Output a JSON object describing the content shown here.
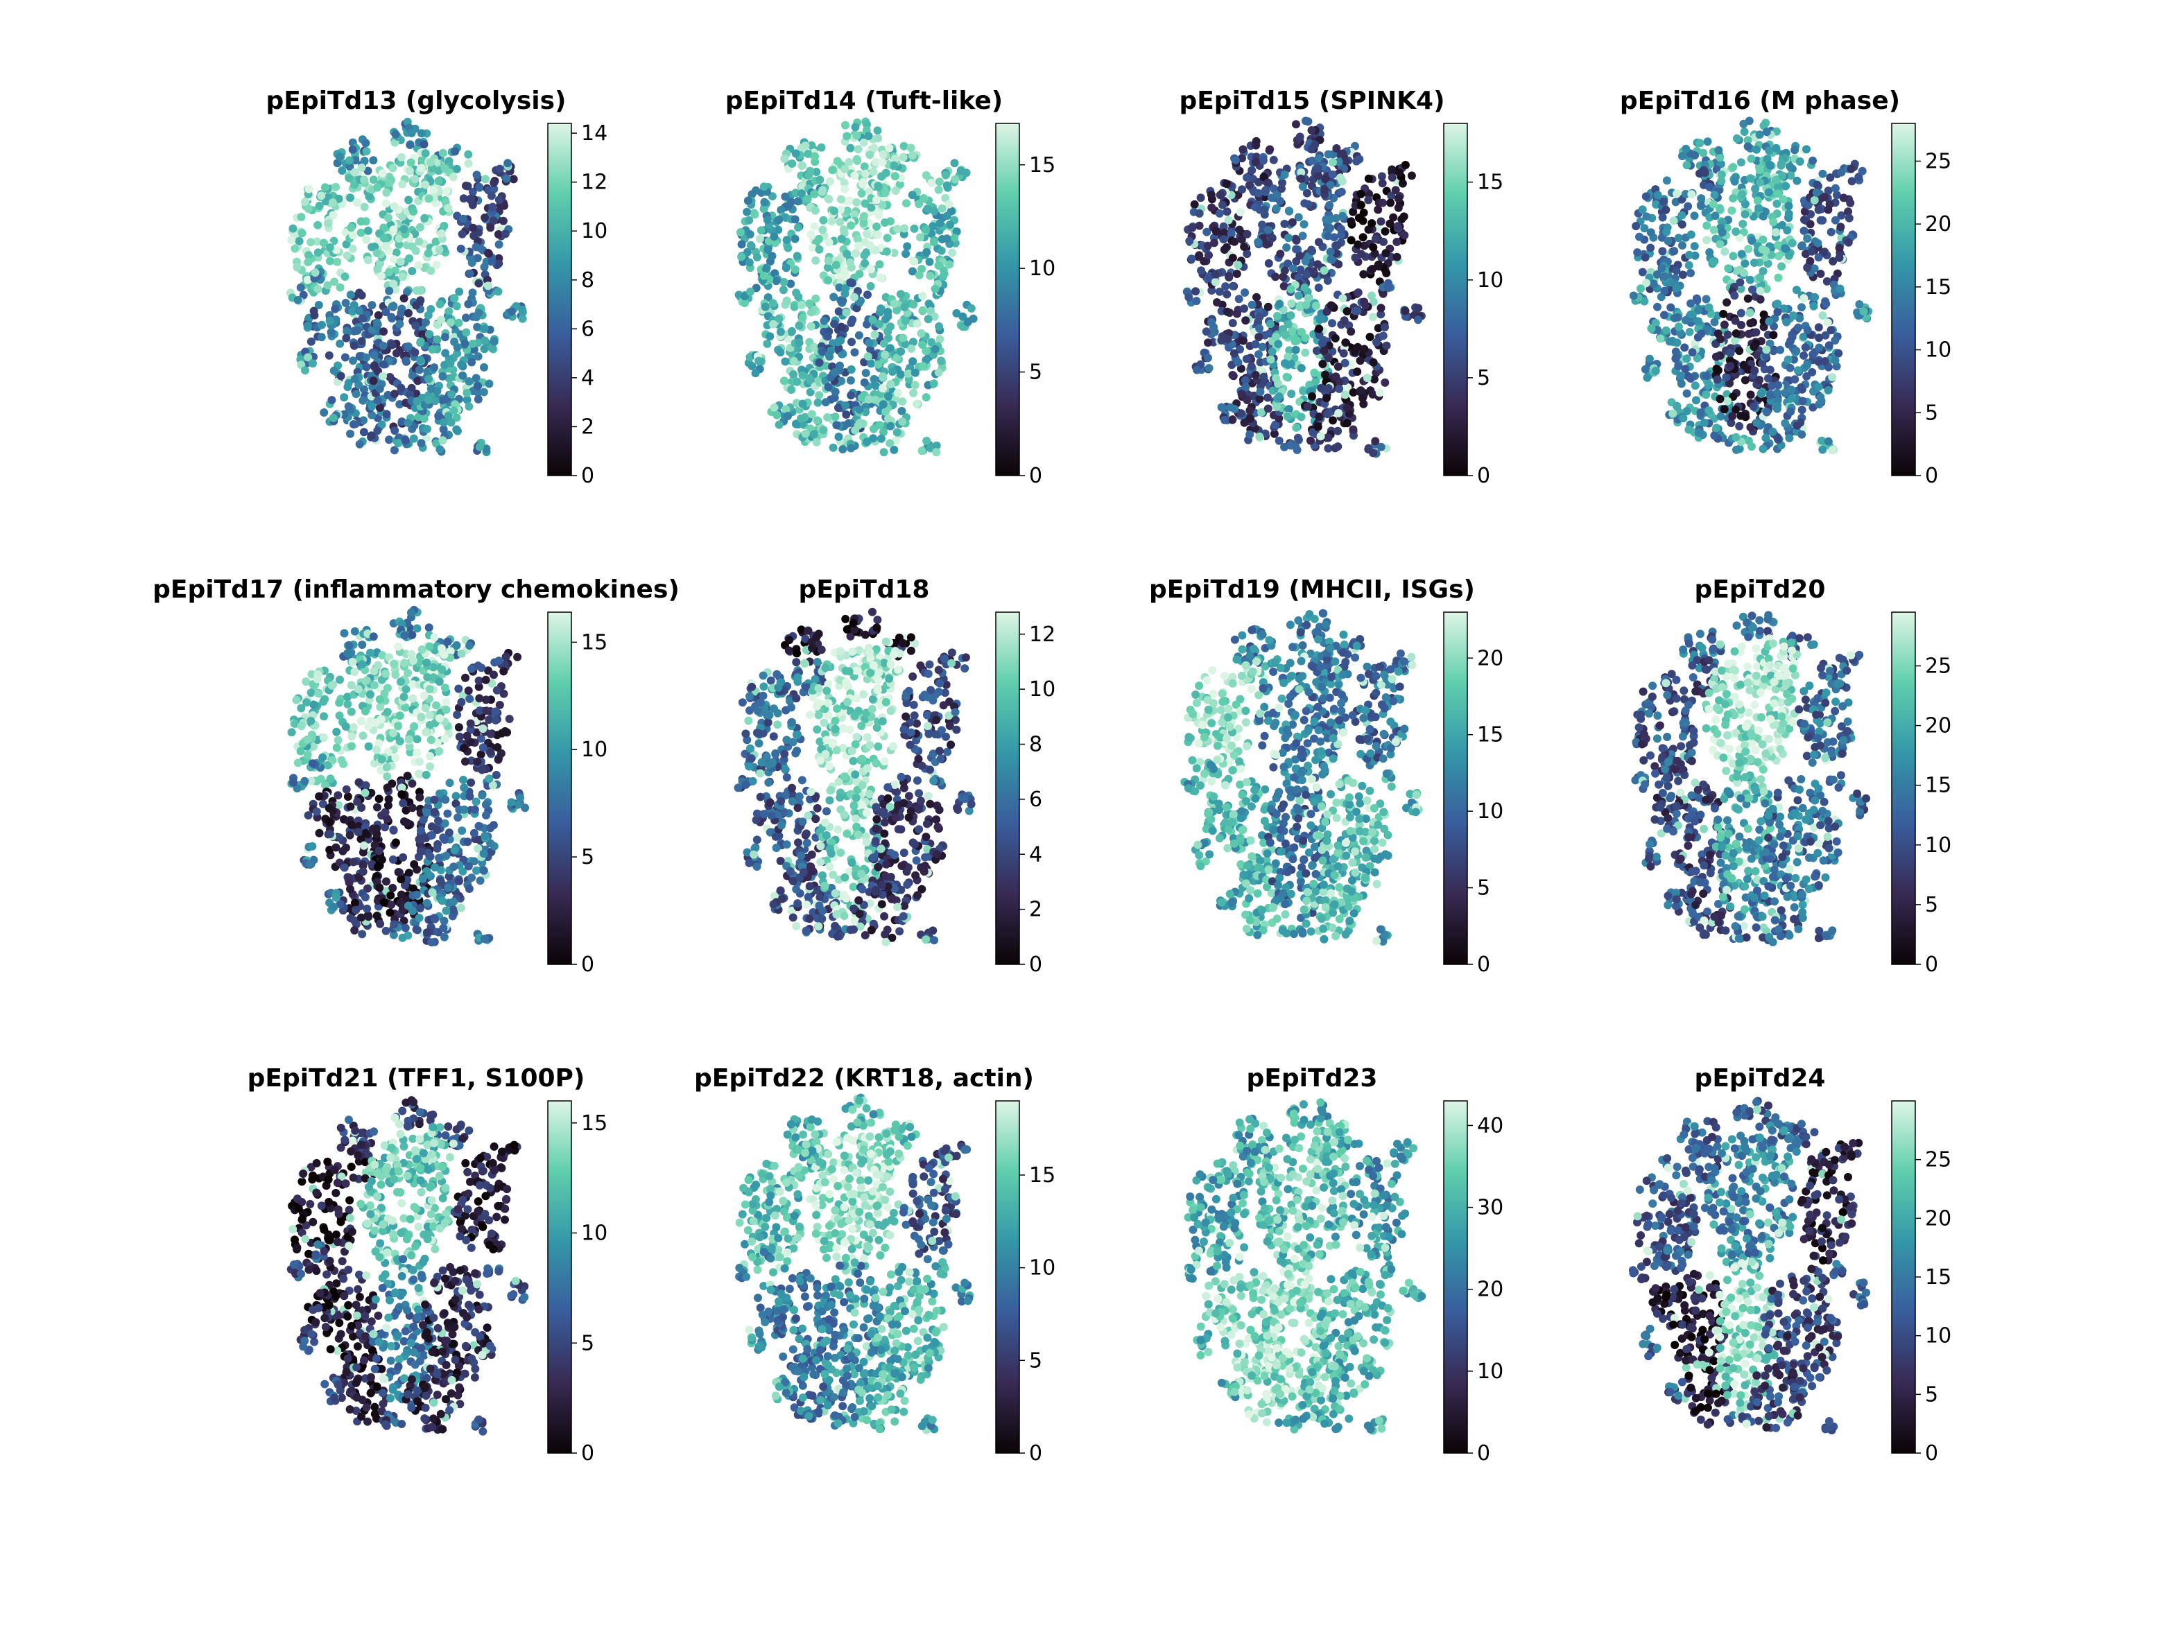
{
  "chart_data": {
    "type": "scatter",
    "colormap": "mako",
    "colormap_stops": [
      "#0b0405",
      "#382a54",
      "#395d9c",
      "#3497a9",
      "#60ceac",
      "#def5e5"
    ],
    "background": "#ffffff",
    "panels": [
      {
        "title": "pEpiTd13 (glycolysis)",
        "vmin": 0,
        "vmax": 14.4,
        "ticks": [
          0,
          2,
          4,
          6,
          8,
          10,
          12,
          14
        ],
        "regions": {
          "left_top": 0.85,
          "center_top": 0.85,
          "right_top": 0.35,
          "left_bottom": 0.45,
          "center_bottom": 0.35,
          "right_bottom": 0.6,
          "islands": 0.55,
          "top_cap": 0.55
        }
      },
      {
        "title": "pEpiTd14 (Tuft-like)",
        "vmin": 0,
        "vmax": 17,
        "ticks": [
          0,
          5,
          10,
          15
        ],
        "regions": {
          "left_top": 0.65,
          "center_top": 0.88,
          "right_top": 0.7,
          "left_bottom": 0.75,
          "center_bottom": 0.45,
          "right_bottom": 0.72,
          "islands": 0.7,
          "top_cap": 0.8
        }
      },
      {
        "title": "pEpiTd15 (SPINK4)",
        "vmin": 0,
        "vmax": 18,
        "ticks": [
          0,
          5,
          10,
          15
        ],
        "regions": {
          "left_top": 0.25,
          "center_top": 0.38,
          "right_top": 0.12,
          "left_bottom": 0.3,
          "center_bottom": 0.72,
          "right_bottom": 0.2,
          "islands": 0.35,
          "top_cap": 0.3
        }
      },
      {
        "title": "pEpiTd16 (M phase)",
        "vmin": 0,
        "vmax": 28,
        "ticks": [
          0,
          5,
          10,
          15,
          20,
          25
        ],
        "regions": {
          "left_top": 0.45,
          "center_top": 0.7,
          "right_top": 0.35,
          "left_bottom": 0.55,
          "center_bottom": 0.2,
          "right_bottom": 0.45,
          "islands": 0.6,
          "top_cap": 0.6
        }
      },
      {
        "title": "pEpiTd17 (inflammatory chemokines)",
        "vmin": 0,
        "vmax": 16.4,
        "ticks": [
          0,
          5,
          10,
          15
        ],
        "regions": {
          "left_top": 0.8,
          "center_top": 0.85,
          "right_top": 0.25,
          "left_bottom": 0.2,
          "center_bottom": 0.15,
          "right_bottom": 0.45,
          "islands": 0.5,
          "top_cap": 0.55
        }
      },
      {
        "title": "pEpiTd18",
        "vmin": 0,
        "vmax": 12.8,
        "ticks": [
          0,
          2,
          4,
          6,
          8,
          10,
          12
        ],
        "regions": {
          "left_top": 0.45,
          "center_top": 0.88,
          "right_top": 0.3,
          "left_bottom": 0.35,
          "center_bottom": 0.85,
          "right_bottom": 0.25,
          "islands": 0.4,
          "top_cap": 0.15
        }
      },
      {
        "title": "pEpiTd19 (MHCII, ISGs)",
        "vmin": 0,
        "vmax": 23,
        "ticks": [
          0,
          5,
          10,
          15,
          20
        ],
        "regions": {
          "left_top": 0.88,
          "center_top": 0.5,
          "right_top": 0.45,
          "left_bottom": 0.72,
          "center_bottom": 0.45,
          "right_bottom": 0.75,
          "islands": 0.65,
          "top_cap": 0.5
        }
      },
      {
        "title": "pEpiTd20",
        "vmin": 0,
        "vmax": 29.5,
        "ticks": [
          0,
          5,
          10,
          15,
          20,
          25
        ],
        "regions": {
          "left_top": 0.35,
          "center_top": 0.9,
          "right_top": 0.45,
          "left_bottom": 0.3,
          "center_bottom": 0.65,
          "right_bottom": 0.45,
          "islands": 0.4,
          "top_cap": 0.45
        }
      },
      {
        "title": "pEpiTd21 (TFF1, S100P)",
        "vmin": 0,
        "vmax": 16,
        "ticks": [
          0,
          5,
          10,
          15
        ],
        "regions": {
          "left_top": 0.1,
          "center_top": 0.8,
          "right_top": 0.15,
          "left_bottom": 0.15,
          "center_bottom": 0.5,
          "right_bottom": 0.2,
          "islands": 0.35,
          "top_cap": 0.3
        }
      },
      {
        "title": "pEpiTd22 (KRT18, actin)",
        "vmin": 0,
        "vmax": 19,
        "ticks": [
          0,
          5,
          10,
          15
        ],
        "regions": {
          "left_top": 0.72,
          "center_top": 0.88,
          "right_top": 0.35,
          "left_bottom": 0.5,
          "center_bottom": 0.55,
          "right_bottom": 0.72,
          "islands": 0.6,
          "top_cap": 0.7
        }
      },
      {
        "title": "pEpiTd23",
        "vmin": 0,
        "vmax": 43,
        "ticks": [
          0,
          10,
          20,
          30,
          40
        ],
        "regions": {
          "left_top": 0.65,
          "center_top": 0.75,
          "right_top": 0.6,
          "left_bottom": 0.85,
          "center_bottom": 0.9,
          "right_bottom": 0.72,
          "islands": 0.7,
          "top_cap": 0.65
        }
      },
      {
        "title": "pEpiTd24",
        "vmin": 0,
        "vmax": 30,
        "ticks": [
          0,
          5,
          10,
          15,
          20,
          25
        ],
        "regions": {
          "left_top": 0.35,
          "center_top": 0.55,
          "right_top": 0.15,
          "left_bottom": 0.12,
          "center_bottom": 0.88,
          "right_bottom": 0.3,
          "islands": 0.4,
          "top_cap": 0.4
        }
      }
    ]
  }
}
